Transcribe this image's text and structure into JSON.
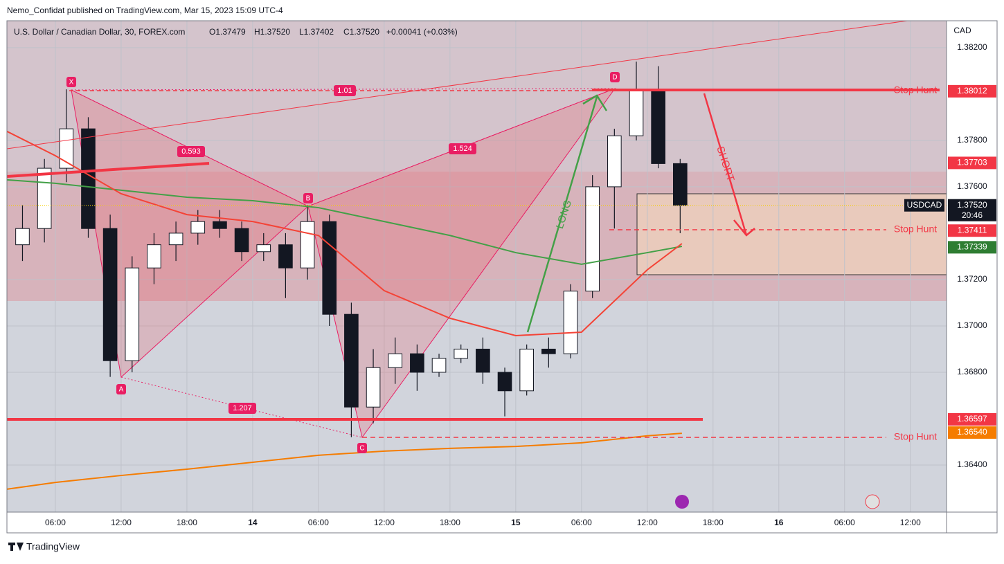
{
  "header": {
    "publisher": "Nemo_Confidat published on TradingView.com, Mar 15, 2023 15:09 UTC-4",
    "symbol": "U.S. Dollar / Canadian Dollar, 30, FOREX.com",
    "ohlc": [
      "O1.37479",
      "H1.37520",
      "L1.37402",
      "C1.37520",
      "+0.00041 (+0.03%)"
    ],
    "currency": "CAD"
  },
  "footer": {
    "brand": "TradingView"
  },
  "chart_data": {
    "type": "candlestick",
    "xlim": [
      1.58,
      87.3
    ],
    "ylim": [
      1.36197,
      1.38316
    ],
    "xticks": [
      {
        "value": 6,
        "label": "06:00"
      },
      {
        "value": 12,
        "label": "12:00"
      },
      {
        "value": 18,
        "label": "18:00"
      },
      {
        "value": 24,
        "label": "14"
      },
      {
        "value": 30,
        "label": "06:00"
      },
      {
        "value": 36,
        "label": "12:00"
      },
      {
        "value": 42,
        "label": "18:00"
      },
      {
        "value": 48,
        "label": "15"
      },
      {
        "value": 54,
        "label": "06:00"
      },
      {
        "value": 60,
        "label": "12:00"
      },
      {
        "value": 66,
        "label": "18:00"
      },
      {
        "value": 72,
        "label": "16"
      },
      {
        "value": 78,
        "label": "06:00"
      },
      {
        "value": 84,
        "label": "12:00"
      }
    ],
    "yticks": [
      {
        "value": 1.382,
        "label": "1.38200"
      },
      {
        "value": 1.378,
        "label": "1.37800"
      },
      {
        "value": 1.376,
        "label": "1.37600"
      },
      {
        "value": 1.372,
        "label": "1.37200"
      },
      {
        "value": 1.37,
        "label": "1.37000"
      },
      {
        "value": 1.368,
        "label": "1.36800"
      },
      {
        "value": 1.364,
        "label": "1.36400"
      }
    ],
    "grid": true,
    "candles": {
      "x": [
        3,
        5,
        7,
        9,
        11,
        13,
        15,
        17,
        19,
        21,
        23,
        25,
        27,
        29,
        31,
        33,
        35,
        37,
        39,
        41,
        43,
        45,
        47,
        49,
        51,
        53,
        55,
        57,
        59,
        61,
        63
      ],
      "open": [
        1.3735,
        1.3742,
        1.3768,
        1.3785,
        1.3742,
        1.3685,
        1.3725,
        1.3735,
        1.374,
        1.3745,
        1.3742,
        1.3732,
        1.3735,
        1.3725,
        1.3745,
        1.3705,
        1.3665,
        1.3682,
        1.3688,
        1.368,
        1.3686,
        1.369,
        1.368,
        1.3672,
        1.369,
        1.3688,
        1.3715,
        1.376,
        1.3782,
        1.3802,
        1.377
      ],
      "high": [
        1.3752,
        1.3772,
        1.3802,
        1.379,
        1.3748,
        1.373,
        1.374,
        1.3745,
        1.375,
        1.375,
        1.3745,
        1.374,
        1.374,
        1.3752,
        1.3748,
        1.371,
        1.369,
        1.3695,
        1.3692,
        1.3688,
        1.3692,
        1.3695,
        1.3682,
        1.3692,
        1.3695,
        1.3718,
        1.3765,
        1.3785,
        1.3814,
        1.3812,
        1.3772
      ],
      "low": [
        1.3728,
        1.3736,
        1.3762,
        1.3738,
        1.3678,
        1.368,
        1.3718,
        1.3728,
        1.3735,
        1.3738,
        1.3728,
        1.3728,
        1.3712,
        1.372,
        1.37,
        1.3652,
        1.3658,
        1.3675,
        1.3672,
        1.3678,
        1.3684,
        1.3675,
        1.3661,
        1.367,
        1.3682,
        1.3686,
        1.3712,
        1.3742,
        1.378,
        1.3768,
        1.374
      ],
      "close": [
        1.3742,
        1.3768,
        1.3785,
        1.3742,
        1.3685,
        1.3725,
        1.3735,
        1.374,
        1.3745,
        1.3742,
        1.3732,
        1.3735,
        1.3725,
        1.3745,
        1.3705,
        1.3665,
        1.3682,
        1.3688,
        1.368,
        1.3686,
        1.369,
        1.368,
        1.3672,
        1.369,
        1.3688,
        1.3715,
        1.376,
        1.3782,
        1.3802,
        1.377,
        1.3752
      ],
      "up_color": "#ffffff",
      "down_color": "#131722"
    },
    "series": [
      {
        "color": "#43a047",
        "x": [
          1.58,
          6,
          12,
          18,
          24,
          30,
          36,
          42,
          48,
          54,
          60,
          63.16
        ],
        "values": [
          1.3763,
          1.37615,
          1.37585,
          1.37555,
          1.3754,
          1.3751,
          1.3745,
          1.3739,
          1.37316,
          1.37266,
          1.37316,
          1.37343
        ]
      },
      {
        "color": "#f44336",
        "x": [
          1.58,
          6,
          12,
          18,
          24,
          30,
          36,
          42,
          48,
          54,
          60,
          63.16
        ],
        "values": [
          1.37839,
          1.37734,
          1.3757,
          1.3748,
          1.3745,
          1.3739,
          1.37152,
          1.37033,
          1.36958,
          1.36973,
          1.37242,
          1.37355
        ]
      },
      {
        "color": "#f57c00",
        "x": [
          1.58,
          6,
          12,
          18,
          24,
          30,
          36,
          42,
          48,
          54,
          60,
          63.16
        ],
        "values": [
          1.36296,
          1.36325,
          1.36355,
          1.36382,
          1.36412,
          1.36442,
          1.3646,
          1.36472,
          1.3648,
          1.36496,
          1.36526,
          1.36537
        ]
      }
    ],
    "current_price": {
      "value": 1.3752,
      "symbol": "USDCAD",
      "countdown": "20:46"
    },
    "price_tags": [
      {
        "value": 1.38012,
        "label": "1.38012",
        "color": "#f23645"
      },
      {
        "value": 1.37703,
        "label": "1.37703",
        "color": "#f23645"
      },
      {
        "value": 1.37411,
        "label": "1.37411",
        "color": "#f23645"
      },
      {
        "value": 1.37339,
        "label": "1.37339",
        "color": "#2e7d32"
      },
      {
        "value": 1.36597,
        "label": "1.36597",
        "color": "#f23645"
      },
      {
        "value": 1.3654,
        "label": "1.36540",
        "color": "#f57c00"
      }
    ],
    "annotations": {
      "stop_hunt": [
        "Stop Hunt",
        "Stop Hunt",
        "Stop Hunt"
      ],
      "long": "LONG",
      "short": "SHORT",
      "pattern_points": [
        "X",
        "A",
        "B",
        "C",
        "D"
      ],
      "ratios": [
        0.593,
        1.524,
        1.207,
        1.01
      ]
    }
  }
}
